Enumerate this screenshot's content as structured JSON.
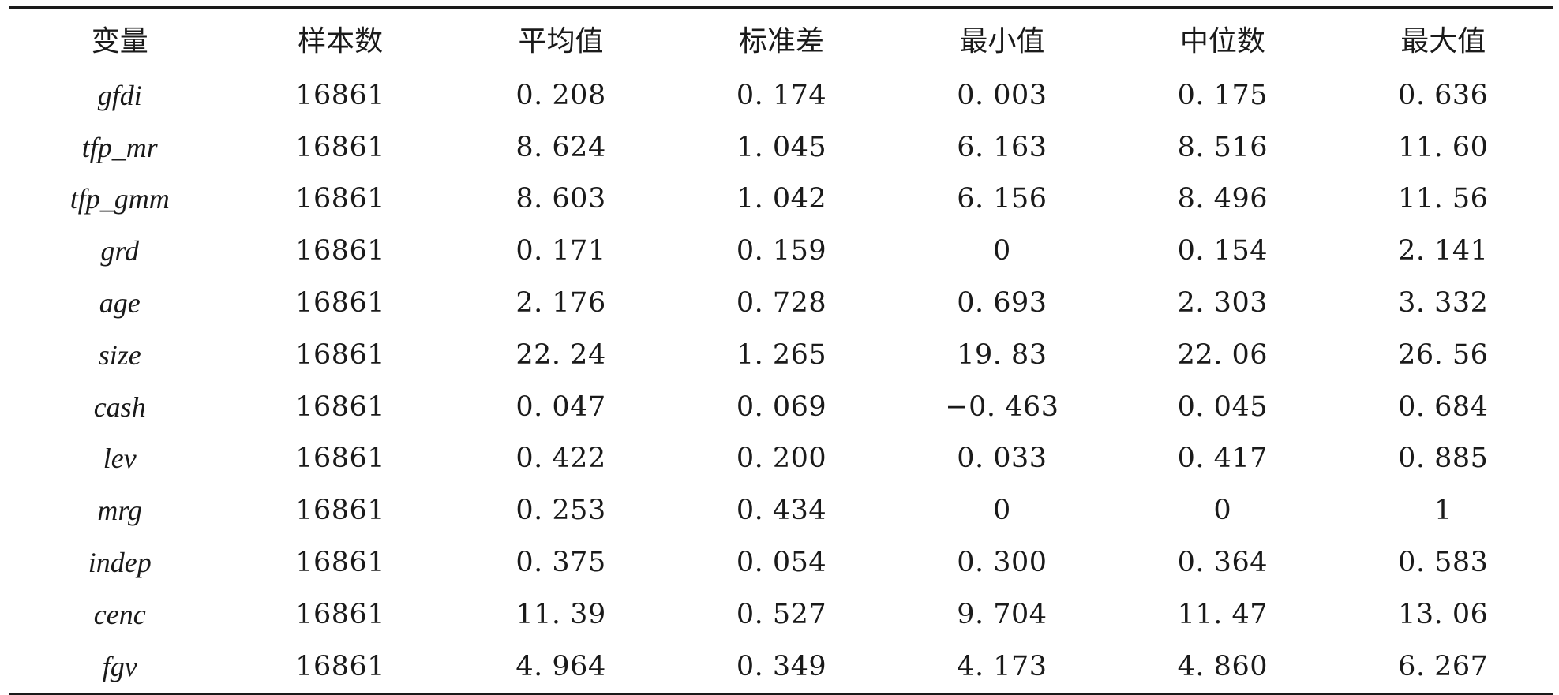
{
  "table": {
    "headers": [
      "变量",
      "样本数",
      "平均值",
      "标准差",
      "最小值",
      "中位数",
      "最大值"
    ],
    "rows": [
      [
        "gfdi",
        "16861",
        "0. 208",
        "0. 174",
        "0. 003",
        "0. 175",
        "0. 636"
      ],
      [
        "tfp_mr",
        "16861",
        "8. 624",
        "1. 045",
        "6. 163",
        "8. 516",
        "11. 60"
      ],
      [
        "tfp_gmm",
        "16861",
        "8. 603",
        "1. 042",
        "6. 156",
        "8. 496",
        "11. 56"
      ],
      [
        "grd",
        "16861",
        "0. 171",
        "0. 159",
        "0",
        "0. 154",
        "2. 141"
      ],
      [
        "age",
        "16861",
        "2. 176",
        "0. 728",
        "0. 693",
        "2. 303",
        "3. 332"
      ],
      [
        "size",
        "16861",
        "22. 24",
        "1. 265",
        "19. 83",
        "22. 06",
        "26. 56"
      ],
      [
        "cash",
        "16861",
        "0. 047",
        "0. 069",
        "−0. 463",
        "0. 045",
        "0. 684"
      ],
      [
        "lev",
        "16861",
        "0. 422",
        "0. 200",
        "0. 033",
        "0. 417",
        "0. 885"
      ],
      [
        "mrg",
        "16861",
        "0. 253",
        "0. 434",
        "0",
        "0",
        "1"
      ],
      [
        "indep",
        "16861",
        "0. 375",
        "0. 054",
        "0. 300",
        "0. 364",
        "0. 583"
      ],
      [
        "cenc",
        "16861",
        "11. 39",
        "0. 527",
        "9. 704",
        "11. 47",
        "13. 06"
      ],
      [
        "fgv",
        "16861",
        "4. 964",
        "0. 349",
        "4. 173",
        "4. 860",
        "6. 267"
      ]
    ]
  }
}
